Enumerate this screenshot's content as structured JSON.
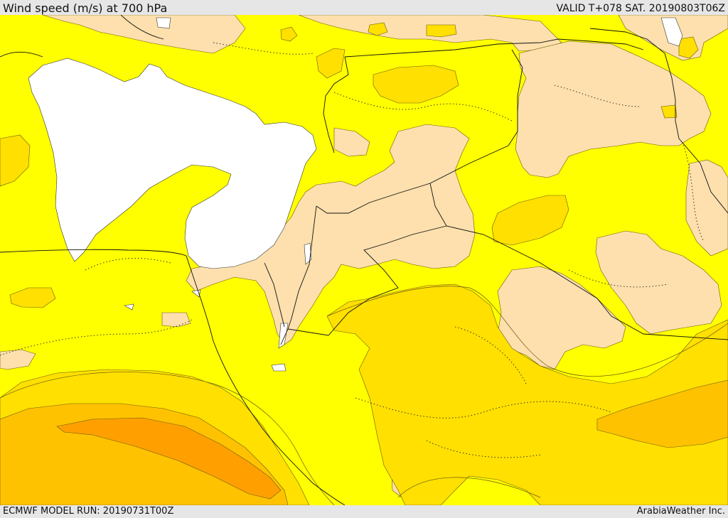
{
  "header": {
    "title": "Wind speed (m/s) at 700 hPa",
    "valid": "VALID T+078 SAT. 20190803T06Z"
  },
  "footer": {
    "model_run": "ECMWF MODEL RUN: 20190731T00Z",
    "credit": "ArabiaWeather Inc."
  },
  "map": {
    "parameter": "wind speed",
    "level": "700 hPa",
    "units": "m/s",
    "region": "Eastern Mediterranean / Middle East",
    "colors": {
      "terrain_below": "#ffffff",
      "band_low": "#fde0ad",
      "band_mid": "#ffff00",
      "band_high": "#ffe000",
      "band_higher": "#ffc200",
      "band_highest": "#ffa000",
      "contour_line": "#5a4a00",
      "border_line": "#111111"
    }
  }
}
